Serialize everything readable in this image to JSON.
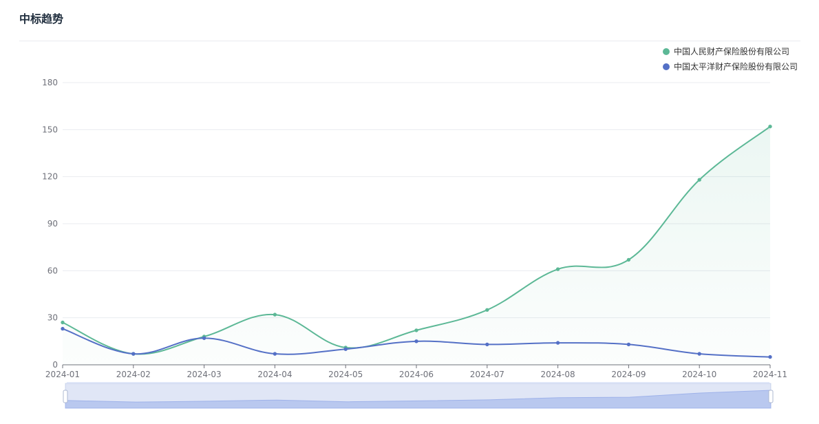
{
  "panel": {
    "title": "中标趋势"
  },
  "chart_data": {
    "type": "line",
    "categories": [
      "2024-01",
      "2024-02",
      "2024-03",
      "2024-04",
      "2024-05",
      "2024-06",
      "2024-07",
      "2024-08",
      "2024-09",
      "2024-10",
      "2024-11"
    ],
    "ylim": [
      0,
      180
    ],
    "yticks": [
      0,
      30,
      60,
      90,
      120,
      150,
      180
    ],
    "grid": true,
    "legend_position": "top-right",
    "series": [
      {
        "name": "中国人民财产保险股份有限公司",
        "color": "#5cb896",
        "area": true,
        "values": [
          27,
          7,
          18,
          32,
          11,
          22,
          35,
          61,
          67,
          118,
          152
        ]
      },
      {
        "name": "中国太平洋财产保险股份有限公司",
        "color": "#5470c6",
        "area": false,
        "values": [
          23,
          7,
          17,
          7,
          10,
          15,
          13,
          14,
          13,
          7,
          5
        ]
      }
    ]
  },
  "data_zoom": {
    "start_percent": 0,
    "end_percent": 100
  }
}
